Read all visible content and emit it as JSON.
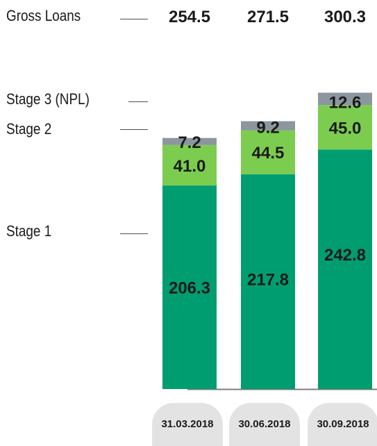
{
  "row_labels": {
    "gross_loans": "Gross Loans",
    "stage3": "Stage 3 (NPL)",
    "stage2": "Stage 2",
    "stage1": "Stage 1"
  },
  "colors": {
    "stage1": "#009d71",
    "stage2": "#7ccd4f",
    "stage3": "#8c969f",
    "pill": "#e3e3e3",
    "text": "#1a1a1a"
  },
  "chart_data": {
    "type": "bar",
    "stacked": true,
    "categories": [
      "31.03.2018",
      "30.06.2018",
      "30.09.2018"
    ],
    "totals": [
      "254.5",
      "271.5",
      "300.3"
    ],
    "series": [
      {
        "name": "Stage 1",
        "values": [
          206.3,
          217.8,
          242.8
        ]
      },
      {
        "name": "Stage 2",
        "values": [
          41.0,
          44.5,
          45.0
        ]
      },
      {
        "name": "Stage 3 (NPL)",
        "values": [
          7.2,
          9.2,
          12.6
        ]
      }
    ],
    "value_labels": [
      [
        "206.3",
        "217.8",
        "242.8"
      ],
      [
        "41.0",
        "44.5",
        "45.0"
      ],
      [
        "7.2",
        "9.2",
        "12.6"
      ]
    ]
  }
}
